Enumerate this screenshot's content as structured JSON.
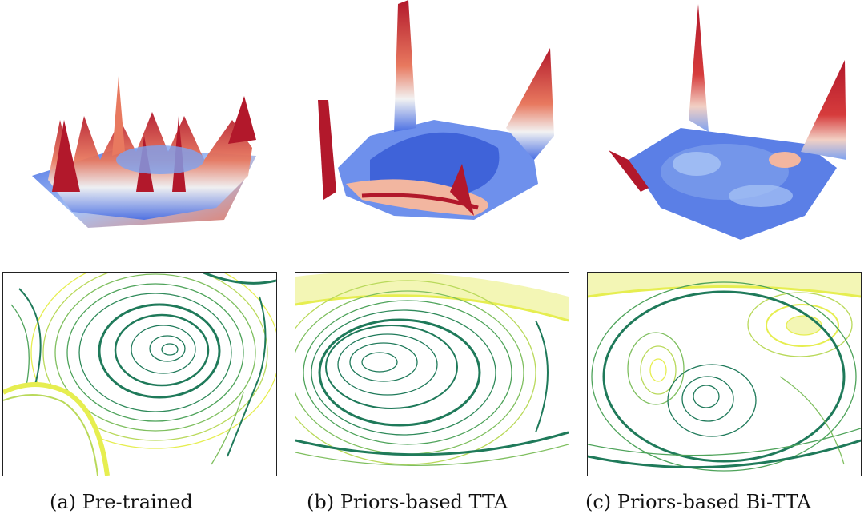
{
  "panels": [
    {
      "id": "a",
      "caption": "(a) Pre-trained",
      "palette": {
        "low": "#4a6fe3",
        "mid": "#f2f2f2",
        "high": "#b2182b"
      },
      "contour_colors": {
        "dark": "#1f7a5a",
        "mid": "#7fbf5f",
        "light": "#e6ee50"
      }
    },
    {
      "id": "b",
      "caption": "(b) Priors-based TTA",
      "palette": {
        "low": "#4a6fe3",
        "mid": "#f2f2f2",
        "high": "#b2182b"
      },
      "contour_colors": {
        "dark": "#1f7a5a",
        "mid": "#7fbf5f",
        "light": "#e6ee50"
      }
    },
    {
      "id": "c",
      "caption": "(c) Priors-based Bi-TTA",
      "palette": {
        "low": "#4a6fe3",
        "mid": "#f2f2f2",
        "high": "#b2182b"
      },
      "contour_colors": {
        "dark": "#1f7a5a",
        "mid": "#7fbf5f",
        "light": "#e6ee50"
      }
    }
  ]
}
